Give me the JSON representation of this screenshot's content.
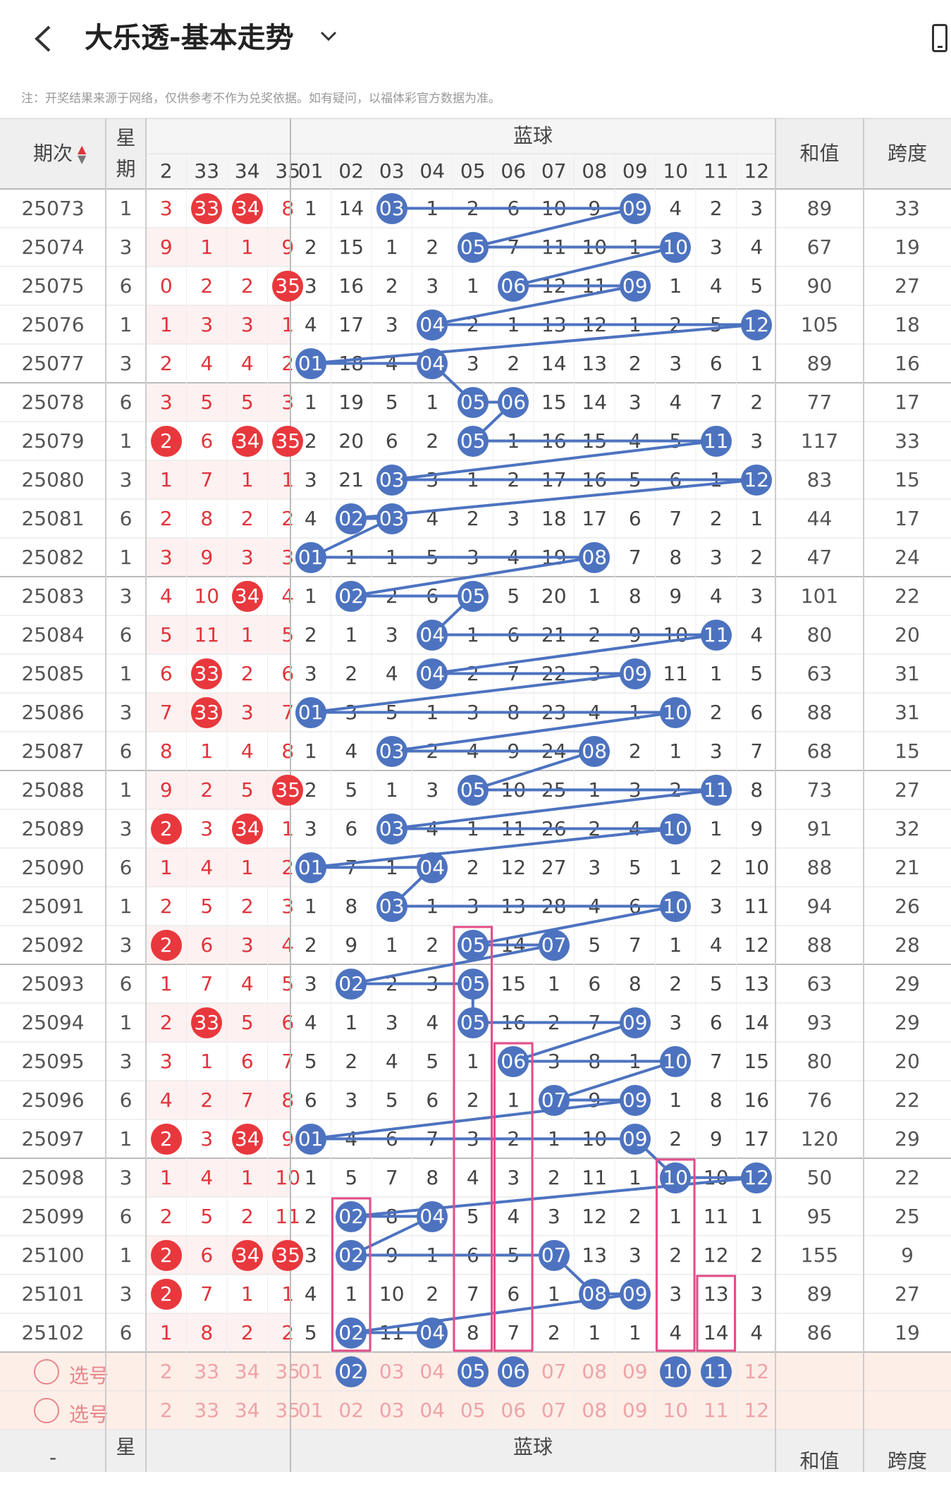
{
  "titlebar": {
    "title": "大乐透-基本走势",
    "back_icon": "chevron-left-icon",
    "dropdown_icon": "chevron-down-icon",
    "device_icon": "phone-icon"
  },
  "notice": "注：开奖结果来源于网络，仅供参考不作为兑奖依据。如有疑问，以福体彩官方数据为准。",
  "header": {
    "issue": "期次",
    "week": "星期",
    "blue_title": "蓝球",
    "sum": "和值",
    "span": "跨度",
    "red_cols": [
      "2",
      "33",
      "34",
      "35"
    ],
    "blue_cols": [
      "01",
      "02",
      "03",
      "04",
      "05",
      "06",
      "07",
      "08",
      "09",
      "10",
      "11",
      "12"
    ]
  },
  "colors": {
    "red_ball": "#e8383d",
    "blue_ball": "#4d73c0",
    "highlight_box": "#e64c8a",
    "select_bg": "#fdeee8"
  },
  "rows": [
    {
      "issue": "25073",
      "week": "1",
      "red": [
        "3",
        "33",
        "34",
        "8"
      ],
      "red_hits": [
        1,
        2
      ],
      "blue": [
        "1",
        "14",
        "03",
        "1",
        "2",
        "6",
        "10",
        "9",
        "09",
        "4",
        "2",
        "3"
      ],
      "blue_hits": [
        2,
        8
      ],
      "sum": "89",
      "span": "33"
    },
    {
      "issue": "25074",
      "week": "3",
      "red": [
        "9",
        "1",
        "1",
        "9"
      ],
      "red_hits": [],
      "blue": [
        "2",
        "15",
        "1",
        "2",
        "05",
        "7",
        "11",
        "10",
        "1",
        "10",
        "3",
        "4"
      ],
      "blue_hits": [
        4,
        9
      ],
      "sum": "67",
      "span": "19"
    },
    {
      "issue": "25075",
      "week": "6",
      "red": [
        "0",
        "2",
        "2",
        "35"
      ],
      "red_hits": [
        3
      ],
      "blue": [
        "3",
        "16",
        "2",
        "3",
        "1",
        "06",
        "12",
        "11",
        "09",
        "1",
        "4",
        "5"
      ],
      "blue_hits": [
        5,
        8
      ],
      "sum": "90",
      "span": "27"
    },
    {
      "issue": "25076",
      "week": "1",
      "red": [
        "1",
        "3",
        "3",
        "1"
      ],
      "red_hits": [],
      "blue": [
        "4",
        "17",
        "3",
        "04",
        "2",
        "1",
        "13",
        "12",
        "1",
        "2",
        "5",
        "12"
      ],
      "blue_hits": [
        3,
        11
      ],
      "sum": "105",
      "span": "18"
    },
    {
      "issue": "25077",
      "week": "3",
      "red": [
        "2",
        "4",
        "4",
        "2"
      ],
      "red_hits": [],
      "blue": [
        "01",
        "18",
        "4",
        "04",
        "3",
        "2",
        "14",
        "13",
        "2",
        "3",
        "6",
        "1"
      ],
      "blue_hits": [
        0,
        3
      ],
      "sum": "89",
      "span": "16"
    },
    {
      "issue": "25078",
      "week": "6",
      "red": [
        "3",
        "5",
        "5",
        "3"
      ],
      "red_hits": [],
      "blue": [
        "1",
        "19",
        "5",
        "1",
        "05",
        "06",
        "15",
        "14",
        "3",
        "4",
        "7",
        "2"
      ],
      "blue_hits": [
        4,
        5
      ],
      "sum": "77",
      "span": "17"
    },
    {
      "issue": "25079",
      "week": "1",
      "red": [
        "2",
        "6",
        "34",
        "35"
      ],
      "red_hits": [
        0,
        2,
        3
      ],
      "blue": [
        "2",
        "20",
        "6",
        "2",
        "05",
        "1",
        "16",
        "15",
        "4",
        "5",
        "11",
        "3"
      ],
      "blue_hits": [
        4,
        10
      ],
      "sum": "117",
      "span": "33"
    },
    {
      "issue": "25080",
      "week": "3",
      "red": [
        "1",
        "7",
        "1",
        "1"
      ],
      "red_hits": [],
      "blue": [
        "3",
        "21",
        "03",
        "3",
        "1",
        "2",
        "17",
        "16",
        "5",
        "6",
        "1",
        "12"
      ],
      "blue_hits": [
        2,
        11
      ],
      "sum": "83",
      "span": "15"
    },
    {
      "issue": "25081",
      "week": "6",
      "red": [
        "2",
        "8",
        "2",
        "2"
      ],
      "red_hits": [],
      "blue": [
        "4",
        "02",
        "03",
        "4",
        "2",
        "3",
        "18",
        "17",
        "6",
        "7",
        "2",
        "1"
      ],
      "blue_hits": [
        1,
        2
      ],
      "sum": "44",
      "span": "17"
    },
    {
      "issue": "25082",
      "week": "1",
      "red": [
        "3",
        "9",
        "3",
        "3"
      ],
      "red_hits": [],
      "blue": [
        "01",
        "1",
        "1",
        "5",
        "3",
        "4",
        "19",
        "08",
        "7",
        "8",
        "3",
        "2"
      ],
      "blue_hits": [
        0,
        7
      ],
      "sum": "47",
      "span": "24"
    },
    {
      "issue": "25083",
      "week": "3",
      "red": [
        "4",
        "10",
        "34",
        "4"
      ],
      "red_hits": [
        2
      ],
      "blue": [
        "1",
        "02",
        "2",
        "6",
        "05",
        "5",
        "20",
        "1",
        "8",
        "9",
        "4",
        "3"
      ],
      "blue_hits": [
        1,
        4
      ],
      "sum": "101",
      "span": "22"
    },
    {
      "issue": "25084",
      "week": "6",
      "red": [
        "5",
        "11",
        "1",
        "5"
      ],
      "red_hits": [],
      "blue": [
        "2",
        "1",
        "3",
        "04",
        "1",
        "6",
        "21",
        "2",
        "9",
        "10",
        "11",
        "4"
      ],
      "blue_hits": [
        3,
        10
      ],
      "sum": "80",
      "span": "20"
    },
    {
      "issue": "25085",
      "week": "1",
      "red": [
        "6",
        "33",
        "2",
        "6"
      ],
      "red_hits": [
        1
      ],
      "blue": [
        "3",
        "2",
        "4",
        "04",
        "2",
        "7",
        "22",
        "3",
        "09",
        "11",
        "1",
        "5"
      ],
      "blue_hits": [
        3,
        8
      ],
      "sum": "63",
      "span": "31"
    },
    {
      "issue": "25086",
      "week": "3",
      "red": [
        "7",
        "33",
        "3",
        "7"
      ],
      "red_hits": [
        1
      ],
      "blue": [
        "01",
        "3",
        "5",
        "1",
        "3",
        "8",
        "23",
        "4",
        "1",
        "10",
        "2",
        "6"
      ],
      "blue_hits": [
        0,
        9
      ],
      "sum": "88",
      "span": "31"
    },
    {
      "issue": "25087",
      "week": "6",
      "red": [
        "8",
        "1",
        "4",
        "8"
      ],
      "red_hits": [],
      "blue": [
        "1",
        "4",
        "03",
        "2",
        "4",
        "9",
        "24",
        "08",
        "2",
        "1",
        "3",
        "7"
      ],
      "blue_hits": [
        2,
        7
      ],
      "sum": "68",
      "span": "15"
    },
    {
      "issue": "25088",
      "week": "1",
      "red": [
        "9",
        "2",
        "5",
        "35"
      ],
      "red_hits": [
        3
      ],
      "blue": [
        "2",
        "5",
        "1",
        "3",
        "05",
        "10",
        "25",
        "1",
        "3",
        "2",
        "11",
        "8"
      ],
      "blue_hits": [
        4,
        10
      ],
      "sum": "73",
      "span": "27"
    },
    {
      "issue": "25089",
      "week": "3",
      "red": [
        "2",
        "3",
        "34",
        "1"
      ],
      "red_hits": [
        0,
        2
      ],
      "blue": [
        "3",
        "6",
        "03",
        "4",
        "1",
        "11",
        "26",
        "2",
        "4",
        "10",
        "1",
        "9"
      ],
      "blue_hits": [
        2,
        9
      ],
      "sum": "91",
      "span": "32"
    },
    {
      "issue": "25090",
      "week": "6",
      "red": [
        "1",
        "4",
        "1",
        "2"
      ],
      "red_hits": [],
      "blue": [
        "01",
        "7",
        "1",
        "04",
        "2",
        "12",
        "27",
        "3",
        "5",
        "1",
        "2",
        "10"
      ],
      "blue_hits": [
        0,
        3
      ],
      "sum": "88",
      "span": "21"
    },
    {
      "issue": "25091",
      "week": "1",
      "red": [
        "2",
        "5",
        "2",
        "3"
      ],
      "red_hits": [],
      "blue": [
        "1",
        "8",
        "03",
        "1",
        "3",
        "13",
        "28",
        "4",
        "6",
        "10",
        "3",
        "11"
      ],
      "blue_hits": [
        2,
        9
      ],
      "sum": "94",
      "span": "26"
    },
    {
      "issue": "25092",
      "week": "3",
      "red": [
        "2",
        "6",
        "3",
        "4"
      ],
      "red_hits": [
        0
      ],
      "blue": [
        "2",
        "9",
        "1",
        "2",
        "05",
        "14",
        "07",
        "5",
        "7",
        "1",
        "4",
        "12"
      ],
      "blue_hits": [
        4,
        6
      ],
      "sum": "88",
      "span": "28"
    },
    {
      "issue": "25093",
      "week": "6",
      "red": [
        "1",
        "7",
        "4",
        "5"
      ],
      "red_hits": [],
      "blue": [
        "3",
        "02",
        "2",
        "3",
        "05",
        "15",
        "1",
        "6",
        "8",
        "2",
        "5",
        "13"
      ],
      "blue_hits": [
        1,
        4
      ],
      "sum": "63",
      "span": "29"
    },
    {
      "issue": "25094",
      "week": "1",
      "red": [
        "2",
        "33",
        "5",
        "6"
      ],
      "red_hits": [
        1
      ],
      "blue": [
        "4",
        "1",
        "3",
        "4",
        "05",
        "16",
        "2",
        "7",
        "09",
        "3",
        "6",
        "14"
      ],
      "blue_hits": [
        4,
        8
      ],
      "sum": "93",
      "span": "29"
    },
    {
      "issue": "25095",
      "week": "3",
      "red": [
        "3",
        "1",
        "6",
        "7"
      ],
      "red_hits": [],
      "blue": [
        "5",
        "2",
        "4",
        "5",
        "1",
        "06",
        "3",
        "8",
        "1",
        "10",
        "7",
        "15"
      ],
      "blue_hits": [
        5,
        9
      ],
      "sum": "80",
      "span": "20"
    },
    {
      "issue": "25096",
      "week": "6",
      "red": [
        "4",
        "2",
        "7",
        "8"
      ],
      "red_hits": [],
      "blue": [
        "6",
        "3",
        "5",
        "6",
        "2",
        "1",
        "07",
        "9",
        "09",
        "1",
        "8",
        "16"
      ],
      "blue_hits": [
        6,
        8
      ],
      "sum": "76",
      "span": "22"
    },
    {
      "issue": "25097",
      "week": "1",
      "red": [
        "2",
        "3",
        "34",
        "9"
      ],
      "red_hits": [
        0,
        2
      ],
      "blue": [
        "01",
        "4",
        "6",
        "7",
        "3",
        "2",
        "1",
        "10",
        "09",
        "2",
        "9",
        "17"
      ],
      "blue_hits": [
        0,
        8
      ],
      "sum": "120",
      "span": "29"
    },
    {
      "issue": "25098",
      "week": "3",
      "red": [
        "1",
        "4",
        "1",
        "10"
      ],
      "red_hits": [],
      "blue": [
        "1",
        "5",
        "7",
        "8",
        "4",
        "3",
        "2",
        "11",
        "1",
        "10",
        "10",
        "12"
      ],
      "blue_hits": [
        9,
        11
      ],
      "sum": "50",
      "span": "22"
    },
    {
      "issue": "25099",
      "week": "6",
      "red": [
        "2",
        "5",
        "2",
        "11"
      ],
      "red_hits": [],
      "blue": [
        "2",
        "02",
        "8",
        "04",
        "5",
        "4",
        "3",
        "12",
        "2",
        "1",
        "11",
        "1"
      ],
      "blue_hits": [
        1,
        3
      ],
      "sum": "95",
      "span": "25"
    },
    {
      "issue": "25100",
      "week": "1",
      "red": [
        "2",
        "6",
        "34",
        "35"
      ],
      "red_hits": [
        0,
        2,
        3
      ],
      "blue": [
        "3",
        "02",
        "9",
        "1",
        "6",
        "5",
        "07",
        "13",
        "3",
        "2",
        "12",
        "2"
      ],
      "blue_hits": [
        1,
        6
      ],
      "sum": "155",
      "span": "9"
    },
    {
      "issue": "25101",
      "week": "3",
      "red": [
        "2",
        "7",
        "1",
        "1"
      ],
      "red_hits": [
        0
      ],
      "blue": [
        "4",
        "1",
        "10",
        "2",
        "7",
        "6",
        "1",
        "08",
        "09",
        "3",
        "13",
        "3"
      ],
      "blue_hits": [
        7,
        8
      ],
      "sum": "89",
      "span": "27"
    },
    {
      "issue": "25102",
      "week": "6",
      "red": [
        "1",
        "8",
        "2",
        "2"
      ],
      "red_hits": [],
      "blue": [
        "5",
        "02",
        "11",
        "04",
        "8",
        "7",
        "2",
        "1",
        "1",
        "4",
        "14",
        "4"
      ],
      "blue_hits": [
        1,
        3
      ],
      "sum": "86",
      "span": "19"
    }
  ],
  "select_rows": [
    {
      "label": "选号",
      "red": [
        "2",
        "33",
        "34",
        "35"
      ],
      "blue": [
        "01",
        "02",
        "03",
        "04",
        "05",
        "06",
        "07",
        "08",
        "09",
        "10",
        "11",
        "12"
      ],
      "picked": [
        1,
        4,
        5,
        9,
        10
      ]
    },
    {
      "label": "选号",
      "red": [
        "2",
        "33",
        "34",
        "35"
      ],
      "blue": [
        "01",
        "02",
        "03",
        "04",
        "05",
        "06",
        "07",
        "08",
        "09",
        "10",
        "11",
        "12"
      ],
      "picked": []
    }
  ]
}
